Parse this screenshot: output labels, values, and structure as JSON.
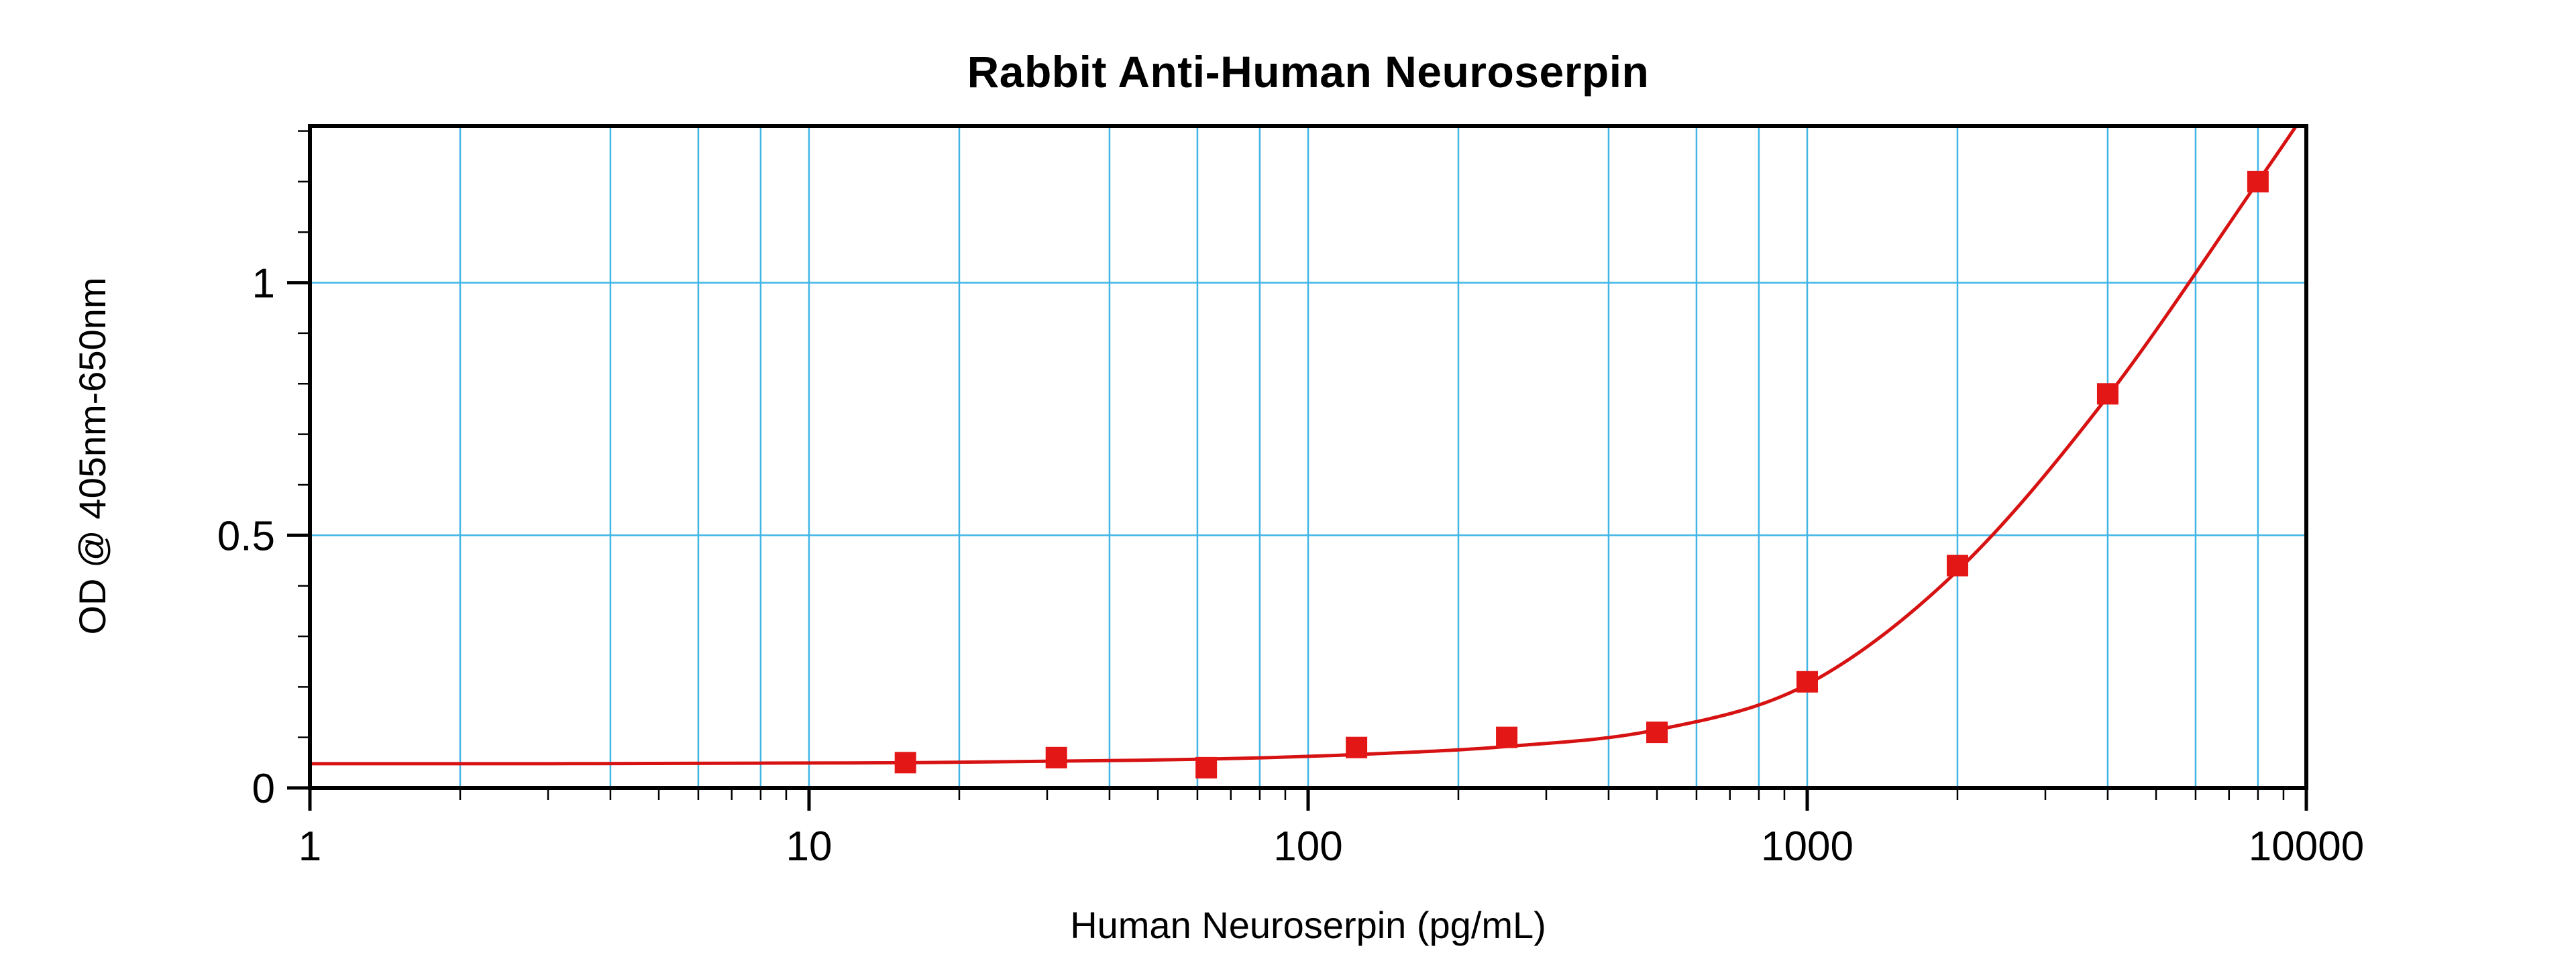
{
  "figure": {
    "background_color": "#ffffff"
  },
  "chart_data": {
    "type": "scatter",
    "title": "Rabbit Anti-Human Neuroserpin",
    "xlabel": "Human Neuroserpin (pg/mL)",
    "ylabel": "OD @ 405nm-650nm",
    "x_scale": "log10",
    "xlim": [
      1,
      10000
    ],
    "ylim": [
      0,
      1.31
    ],
    "grid": "on",
    "grid_color": "#41b6e6",
    "axis_color": "#000000",
    "x_ticks": [
      {
        "value": 1,
        "label": "1"
      },
      {
        "value": 10,
        "label": "10"
      },
      {
        "value": 100,
        "label": "100"
      },
      {
        "value": 1000,
        "label": "1000"
      },
      {
        "value": 10000,
        "label": "10000"
      }
    ],
    "x_minor_tick_multiples": [
      2,
      3,
      4,
      5,
      6,
      7,
      8,
      9
    ],
    "x_grid_multiples": [
      2,
      4,
      6,
      8
    ],
    "y_ticks": [
      {
        "value": 0,
        "label": "0"
      },
      {
        "value": 0.5,
        "label": "0.5"
      },
      {
        "value": 1,
        "label": "1"
      }
    ],
    "y_minor_tick_step": 0.1,
    "y_grid_values": [
      0.5,
      1.0
    ],
    "series": [
      {
        "name": "standard-curve-points",
        "marker": "square",
        "marker_color": "#e41717",
        "points": [
          {
            "x": 15.6,
            "od": 0.05
          },
          {
            "x": 31.3,
            "od": 0.06
          },
          {
            "x": 62.5,
            "od": 0.04
          },
          {
            "x": 125,
            "od": 0.08
          },
          {
            "x": 250,
            "od": 0.1
          },
          {
            "x": 500,
            "od": 0.11
          },
          {
            "x": 1000,
            "od": 0.21
          },
          {
            "x": 2000,
            "od": 0.44
          },
          {
            "x": 4000,
            "od": 0.78
          },
          {
            "x": 8000,
            "od": 1.2
          }
        ]
      }
    ],
    "fit_curve": {
      "name": "4pl-fit-curve",
      "color": "#d61212",
      "anchors": [
        [
          1,
          0.048
        ],
        [
          3,
          0.048
        ],
        [
          8,
          0.049
        ],
        [
          16,
          0.05
        ],
        [
          31,
          0.053
        ],
        [
          63,
          0.057
        ],
        [
          125,
          0.066
        ],
        [
          250,
          0.082
        ],
        [
          500,
          0.115
        ],
        [
          1000,
          0.205
        ],
        [
          2000,
          0.43
        ],
        [
          4000,
          0.775
        ],
        [
          8000,
          1.2
        ],
        [
          10000,
          1.34
        ]
      ]
    }
  }
}
